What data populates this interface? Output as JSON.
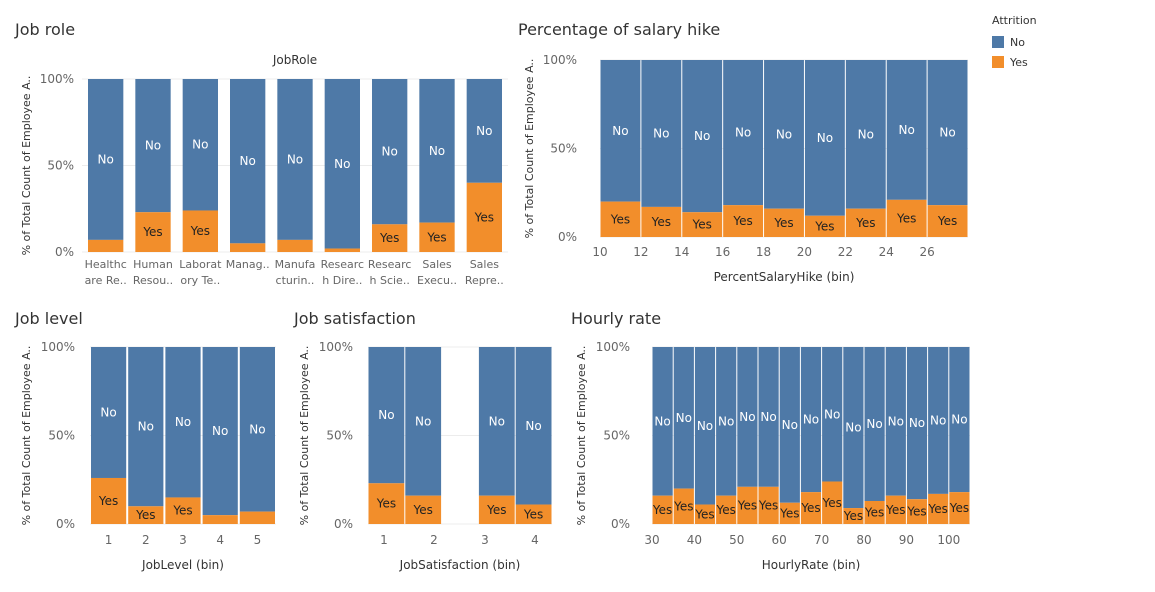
{
  "legend": {
    "title": "Attrition",
    "items": [
      {
        "label": "No",
        "color": "#4e79a7"
      },
      {
        "label": "Yes",
        "color": "#f28e2b"
      }
    ]
  },
  "chart_data": [
    {
      "id": "jobrole",
      "type": "bar",
      "title": "Job role",
      "header": "JobRole",
      "xlabel": "",
      "ylabel": "% of Total Count of Employee A..",
      "ylim": [
        0,
        100
      ],
      "yticks": [
        "0%",
        "50%",
        "100%"
      ],
      "categories": [
        [
          "Healthc",
          "are Re.."
        ],
        [
          "Human",
          "Resou.."
        ],
        [
          "Laborat",
          "ory Te.."
        ],
        [
          "Manag.."
        ],
        [
          "Manufa",
          "cturin.."
        ],
        [
          "Researc",
          "h Dire.."
        ],
        [
          "Researc",
          "h Scie.."
        ],
        [
          "Sales",
          "Execu.."
        ],
        [
          "Sales",
          "Repre.."
        ]
      ],
      "series": [
        {
          "name": "Yes",
          "values": [
            7,
            23,
            24,
            5,
            7,
            2,
            16,
            17,
            40
          ]
        },
        {
          "name": "No",
          "values": [
            93,
            77,
            76,
            95,
            93,
            98,
            84,
            83,
            60
          ]
        }
      ],
      "labels": {
        "no": "No",
        "yes": "Yes"
      }
    },
    {
      "id": "salaryhike",
      "type": "bar",
      "title": "Percentage of salary hike",
      "header": "",
      "xlabel": "PercentSalaryHike (bin)",
      "ylabel": "% of Total Count of Employee A..",
      "ylim": [
        0,
        100
      ],
      "yticks": [
        "0%",
        "50%",
        "100%"
      ],
      "xrange": [
        10,
        26
      ],
      "xticks": [
        "10",
        "12",
        "14",
        "16",
        "18",
        "20",
        "22",
        "24",
        "26"
      ],
      "bars": [
        {
          "x0": 10,
          "x1": 12,
          "yes": 20
        },
        {
          "x0": 12,
          "x1": 14,
          "yes": 17
        },
        {
          "x0": 14,
          "x1": 16,
          "yes": 14
        },
        {
          "x0": 16,
          "x1": 18,
          "yes": 18
        },
        {
          "x0": 18,
          "x1": 20,
          "yes": 16
        },
        {
          "x0": 20,
          "x1": 22,
          "yes": 12
        },
        {
          "x0": 22,
          "x1": 24,
          "yes": 16
        },
        {
          "x0": 24,
          "x1": 26,
          "yes": 21
        },
        {
          "x0": 26,
          "x1": 28,
          "yes": 18
        }
      ],
      "labels": {
        "no": "No",
        "yes": "Yes"
      }
    },
    {
      "id": "joblevel",
      "type": "bar",
      "title": "Job level",
      "header": "",
      "xlabel": "JobLevel (bin)",
      "ylabel": "% of Total Count of Employee A..",
      "ylim": [
        0,
        100
      ],
      "yticks": [
        "0%",
        "50%",
        "100%"
      ],
      "categories": [
        "1",
        "2",
        "3",
        "4",
        "5"
      ],
      "series": [
        {
          "name": "Yes",
          "values": [
            26,
            10,
            15,
            5,
            7
          ]
        },
        {
          "name": "No",
          "values": [
            74,
            90,
            85,
            95,
            93
          ]
        }
      ],
      "labels": {
        "no": "No",
        "yes": "Yes"
      }
    },
    {
      "id": "jobsatisfaction",
      "type": "bar",
      "title": "Job satisfaction",
      "header": "",
      "xlabel": "JobSatisfaction (bin)",
      "ylabel": "% of Total Count of Employee A..",
      "ylim": [
        0,
        100
      ],
      "yticks": [
        "0%",
        "50%",
        "100%"
      ],
      "xrange": [
        0.5,
        4.5
      ],
      "xticks": [
        "1",
        "2",
        "3",
        "4"
      ],
      "bars": [
        {
          "x0": 0.5,
          "x1": 1.5,
          "yes": 23
        },
        {
          "x0": 1.5,
          "x1": 2.5,
          "yes": 16
        },
        {
          "x0": 3.5,
          "x1": 4.5,
          "yes": 16
        },
        {
          "x0": 4.5,
          "x1": 5.5,
          "yes": 11
        }
      ],
      "labels": {
        "no": "No",
        "yes": "Yes"
      }
    },
    {
      "id": "hourlyrate",
      "type": "bar",
      "title": "Hourly rate",
      "header": "",
      "xlabel": "HourlyRate (bin)",
      "ylabel": "% of Total Count of Employee A..",
      "ylim": [
        0,
        100
      ],
      "yticks": [
        "0%",
        "50%",
        "100%"
      ],
      "xrange": [
        30,
        100
      ],
      "xticks": [
        "30",
        "40",
        "50",
        "60",
        "70",
        "80",
        "90",
        "100"
      ],
      "bars": [
        {
          "x0": 30,
          "x1": 35,
          "yes": 16
        },
        {
          "x0": 35,
          "x1": 40,
          "yes": 20
        },
        {
          "x0": 40,
          "x1": 45,
          "yes": 11
        },
        {
          "x0": 45,
          "x1": 50,
          "yes": 16
        },
        {
          "x0": 50,
          "x1": 55,
          "yes": 21
        },
        {
          "x0": 55,
          "x1": 60,
          "yes": 21
        },
        {
          "x0": 60,
          "x1": 65,
          "yes": 12
        },
        {
          "x0": 65,
          "x1": 70,
          "yes": 18
        },
        {
          "x0": 70,
          "x1": 75,
          "yes": 24
        },
        {
          "x0": 75,
          "x1": 80,
          "yes": 9
        },
        {
          "x0": 80,
          "x1": 85,
          "yes": 13
        },
        {
          "x0": 85,
          "x1": 90,
          "yes": 16
        },
        {
          "x0": 90,
          "x1": 95,
          "yes": 14
        },
        {
          "x0": 95,
          "x1": 100,
          "yes": 17
        },
        {
          "x0": 100,
          "x1": 105,
          "yes": 18
        }
      ],
      "labels": {
        "no": "No",
        "yes": "Yes"
      }
    }
  ]
}
